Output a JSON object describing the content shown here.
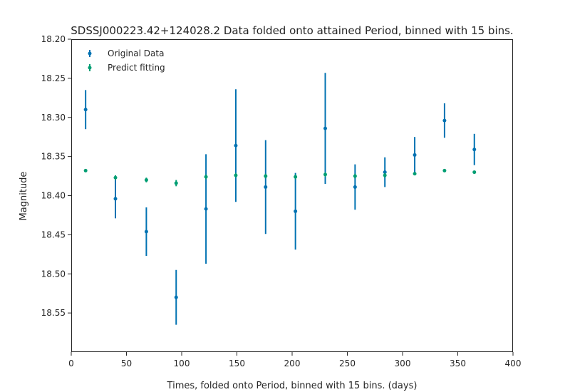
{
  "chart_data": {
    "type": "scatter",
    "title": "SDSSJ000223.42+124028.2 Data folded onto attained Period, binned with 15 bins.",
    "xlabel": "Times, folded onto Period, binned with 15 bins. (days)",
    "ylabel": "Magnitude",
    "xlim": [
      0,
      400
    ],
    "ylim": [
      18.6,
      18.2
    ],
    "y_inverted": true,
    "x_ticks": [
      0,
      50,
      100,
      150,
      200,
      250,
      300,
      350,
      400
    ],
    "x_tick_labels": [
      "0",
      "50",
      "100",
      "150",
      "200",
      "250",
      "300",
      "350",
      "400"
    ],
    "y_ticks": [
      18.2,
      18.25,
      18.3,
      18.35,
      18.4,
      18.45,
      18.5,
      18.55
    ],
    "y_tick_labels": [
      "18.20",
      "18.25",
      "18.30",
      "18.35",
      "18.40",
      "18.45",
      "18.50",
      "18.55"
    ],
    "grid": false,
    "legend_position": "top-left",
    "series": [
      {
        "name": "Original Data",
        "color": "#0072b2",
        "x": [
          13,
          40,
          68,
          95,
          122,
          149,
          176,
          203,
          230,
          257,
          284,
          311,
          338,
          365
        ],
        "y": [
          18.29,
          18.404,
          18.446,
          18.53,
          18.417,
          18.336,
          18.389,
          18.42,
          18.314,
          18.389,
          18.37,
          18.348,
          18.304,
          18.341
        ],
        "yerr": [
          0.025,
          0.025,
          0.031,
          0.035,
          0.07,
          0.072,
          0.06,
          0.049,
          0.071,
          0.029,
          0.019,
          0.023,
          0.022,
          0.02
        ]
      },
      {
        "name": "Predict fitting",
        "color": "#009e73",
        "x": [
          13,
          40,
          68,
          95,
          122,
          149,
          176,
          203,
          230,
          257,
          284,
          311,
          338,
          365
        ],
        "y": [
          18.368,
          18.377,
          18.38,
          18.384,
          18.376,
          18.374,
          18.375,
          18.376,
          18.373,
          18.375,
          18.374,
          18.372,
          18.368,
          18.37
        ],
        "yerr": [
          0.002,
          0.003,
          0.003,
          0.004,
          0.003,
          0.003,
          0.003,
          0.003,
          0.003,
          0.003,
          0.003,
          0.002,
          0.002,
          0.002
        ]
      }
    ]
  }
}
